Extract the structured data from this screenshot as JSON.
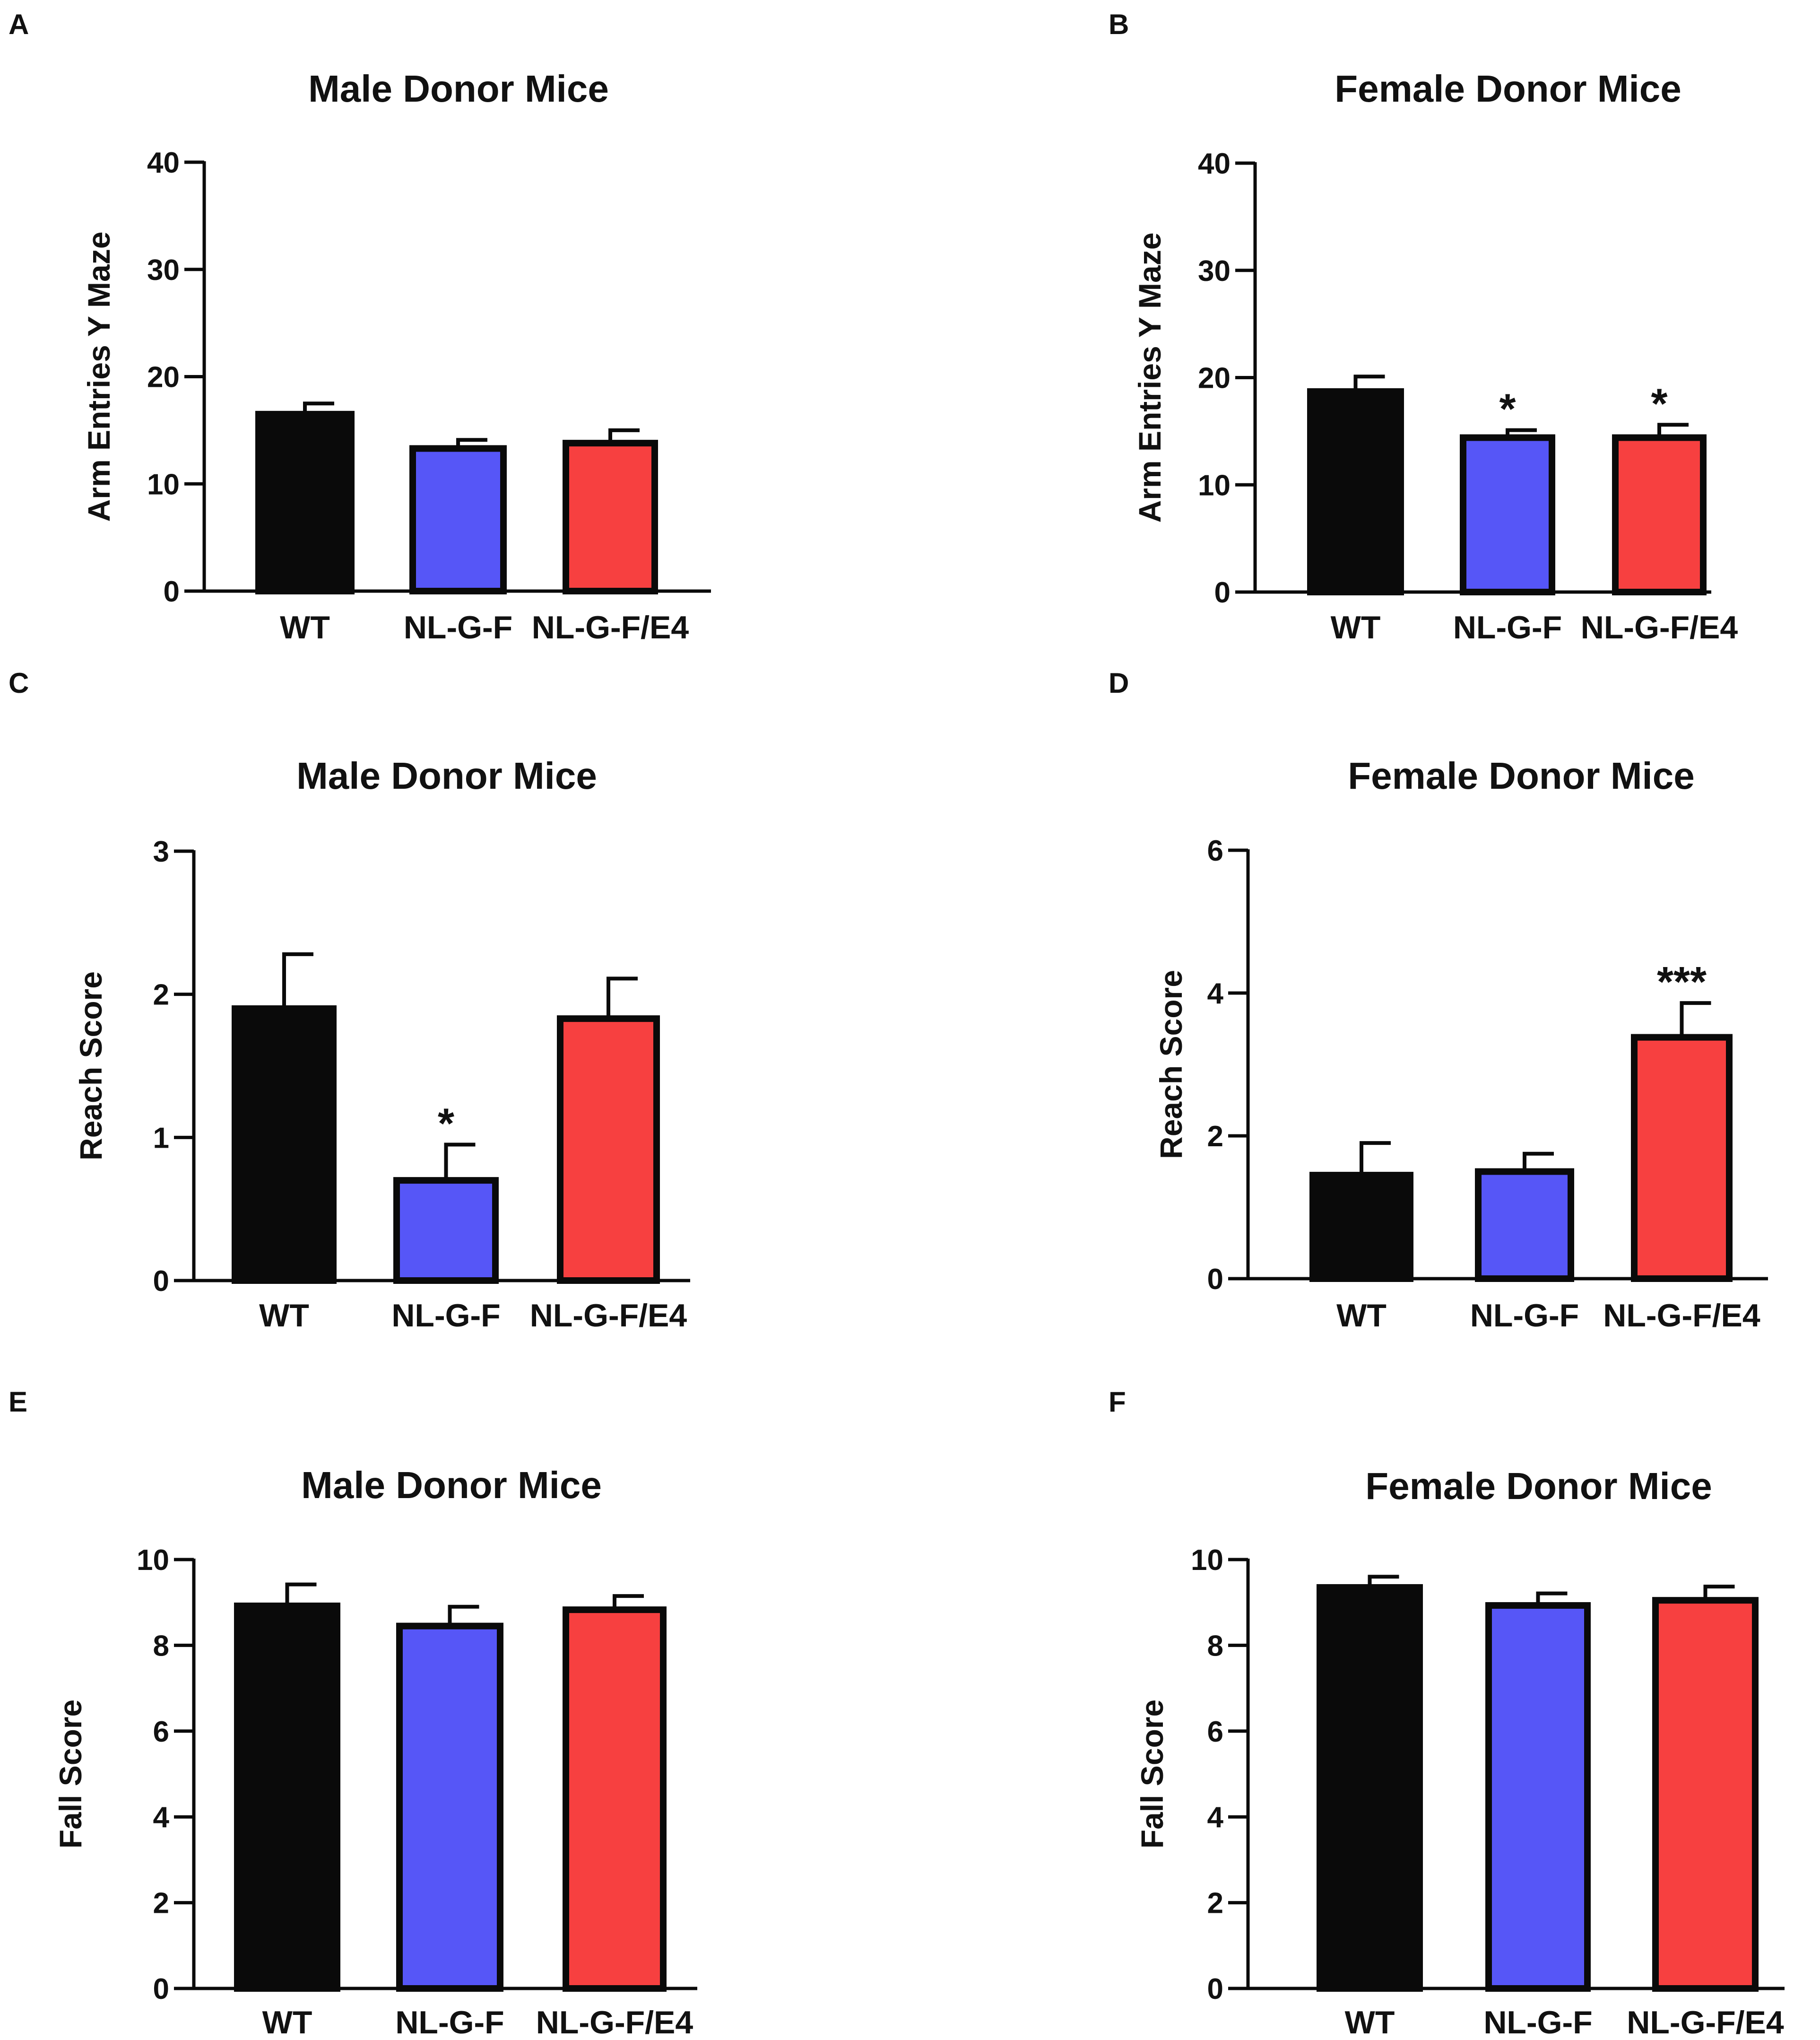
{
  "colors": {
    "WT": "#0a0a0a",
    "NL-G-F": "#5656f7",
    "NL-G-F/E4": "#f74040",
    "outline": "#0a0a0a"
  },
  "chart_data": [
    {
      "panel": "A",
      "type": "bar",
      "title": "Male Donor Mice",
      "ylabel": "Arm Entries Y Maze",
      "xlabel": "",
      "categories": [
        "WT",
        "NL-G-F",
        "NL-G-F/E4"
      ],
      "values": [
        16.5,
        13.3,
        13.8
      ],
      "errors": [
        1.0,
        0.8,
        1.2
      ],
      "significance": [
        "",
        "",
        ""
      ],
      "ylim": [
        0,
        40
      ],
      "yticks": [
        0,
        10,
        20,
        30,
        40
      ],
      "ytick_labels": [
        "0",
        "10",
        "20",
        "30",
        "40"
      ]
    },
    {
      "panel": "B",
      "type": "bar",
      "title": "Female Donor Mice",
      "ylabel": "Arm Entries Y Maze",
      "xlabel": "",
      "categories": [
        "WT",
        "NL-G-F",
        "NL-G-F/E4"
      ],
      "values": [
        18.7,
        14.4,
        14.4
      ],
      "errors": [
        1.4,
        0.7,
        1.2
      ],
      "significance": [
        "",
        "*",
        "*"
      ],
      "ylim": [
        0,
        40
      ],
      "yticks": [
        0,
        10,
        20,
        30,
        40
      ],
      "ytick_labels": [
        "0",
        "10",
        "20",
        "30",
        "40"
      ]
    },
    {
      "panel": "C",
      "type": "bar",
      "title": "Male Donor Mice",
      "ylabel": "Reach Score",
      "xlabel": "",
      "categories": [
        "WT",
        "NL-G-F",
        "NL-G-F/E4"
      ],
      "values": [
        1.9,
        0.7,
        1.83
      ],
      "errors": [
        0.38,
        0.25,
        0.28
      ],
      "significance": [
        "",
        "*",
        ""
      ],
      "ylim": [
        0,
        3
      ],
      "yticks": [
        0,
        1,
        2,
        3
      ],
      "ytick_labels": [
        "0",
        "1",
        "2",
        "3"
      ]
    },
    {
      "panel": "D",
      "type": "bar",
      "title": "Female Donor Mice",
      "ylabel": "Reach Score",
      "xlabel": "",
      "categories": [
        "WT",
        "NL-G-F",
        "NL-G-F/E4"
      ],
      "values": [
        1.45,
        1.5,
        3.38
      ],
      "errors": [
        0.45,
        0.25,
        0.48
      ],
      "significance": [
        "",
        "",
        "***"
      ],
      "ylim": [
        0,
        6
      ],
      "yticks": [
        0,
        2,
        4,
        6
      ],
      "ytick_labels": [
        "0",
        "2",
        "4",
        "6"
      ]
    },
    {
      "panel": "E",
      "type": "bar",
      "title": "Male Donor Mice",
      "ylabel": "Fall Score",
      "xlabel": "",
      "categories": [
        "WT",
        "NL-G-F",
        "NL-G-F/E4"
      ],
      "values": [
        8.92,
        8.45,
        8.83
      ],
      "errors": [
        0.5,
        0.45,
        0.32
      ],
      "significance": [
        "",
        "",
        ""
      ],
      "ylim": [
        0,
        10
      ],
      "yticks": [
        0,
        2,
        4,
        6,
        8,
        10
      ],
      "ytick_labels": [
        "0",
        "2",
        "4",
        "6",
        "8",
        "10"
      ]
    },
    {
      "panel": "F",
      "type": "bar",
      "title": "Female Donor Mice",
      "ylabel": "Fall Score",
      "xlabel": "",
      "categories": [
        "WT",
        "NL-G-F",
        "NL-G-F/E4"
      ],
      "values": [
        9.35,
        8.93,
        9.05
      ],
      "errors": [
        0.25,
        0.28,
        0.32
      ],
      "significance": [
        "",
        "",
        ""
      ],
      "ylim": [
        0,
        10
      ],
      "yticks": [
        0,
        2,
        4,
        6,
        8,
        10
      ],
      "ytick_labels": [
        "0",
        "2",
        "4",
        "6",
        "8",
        "10"
      ]
    }
  ]
}
